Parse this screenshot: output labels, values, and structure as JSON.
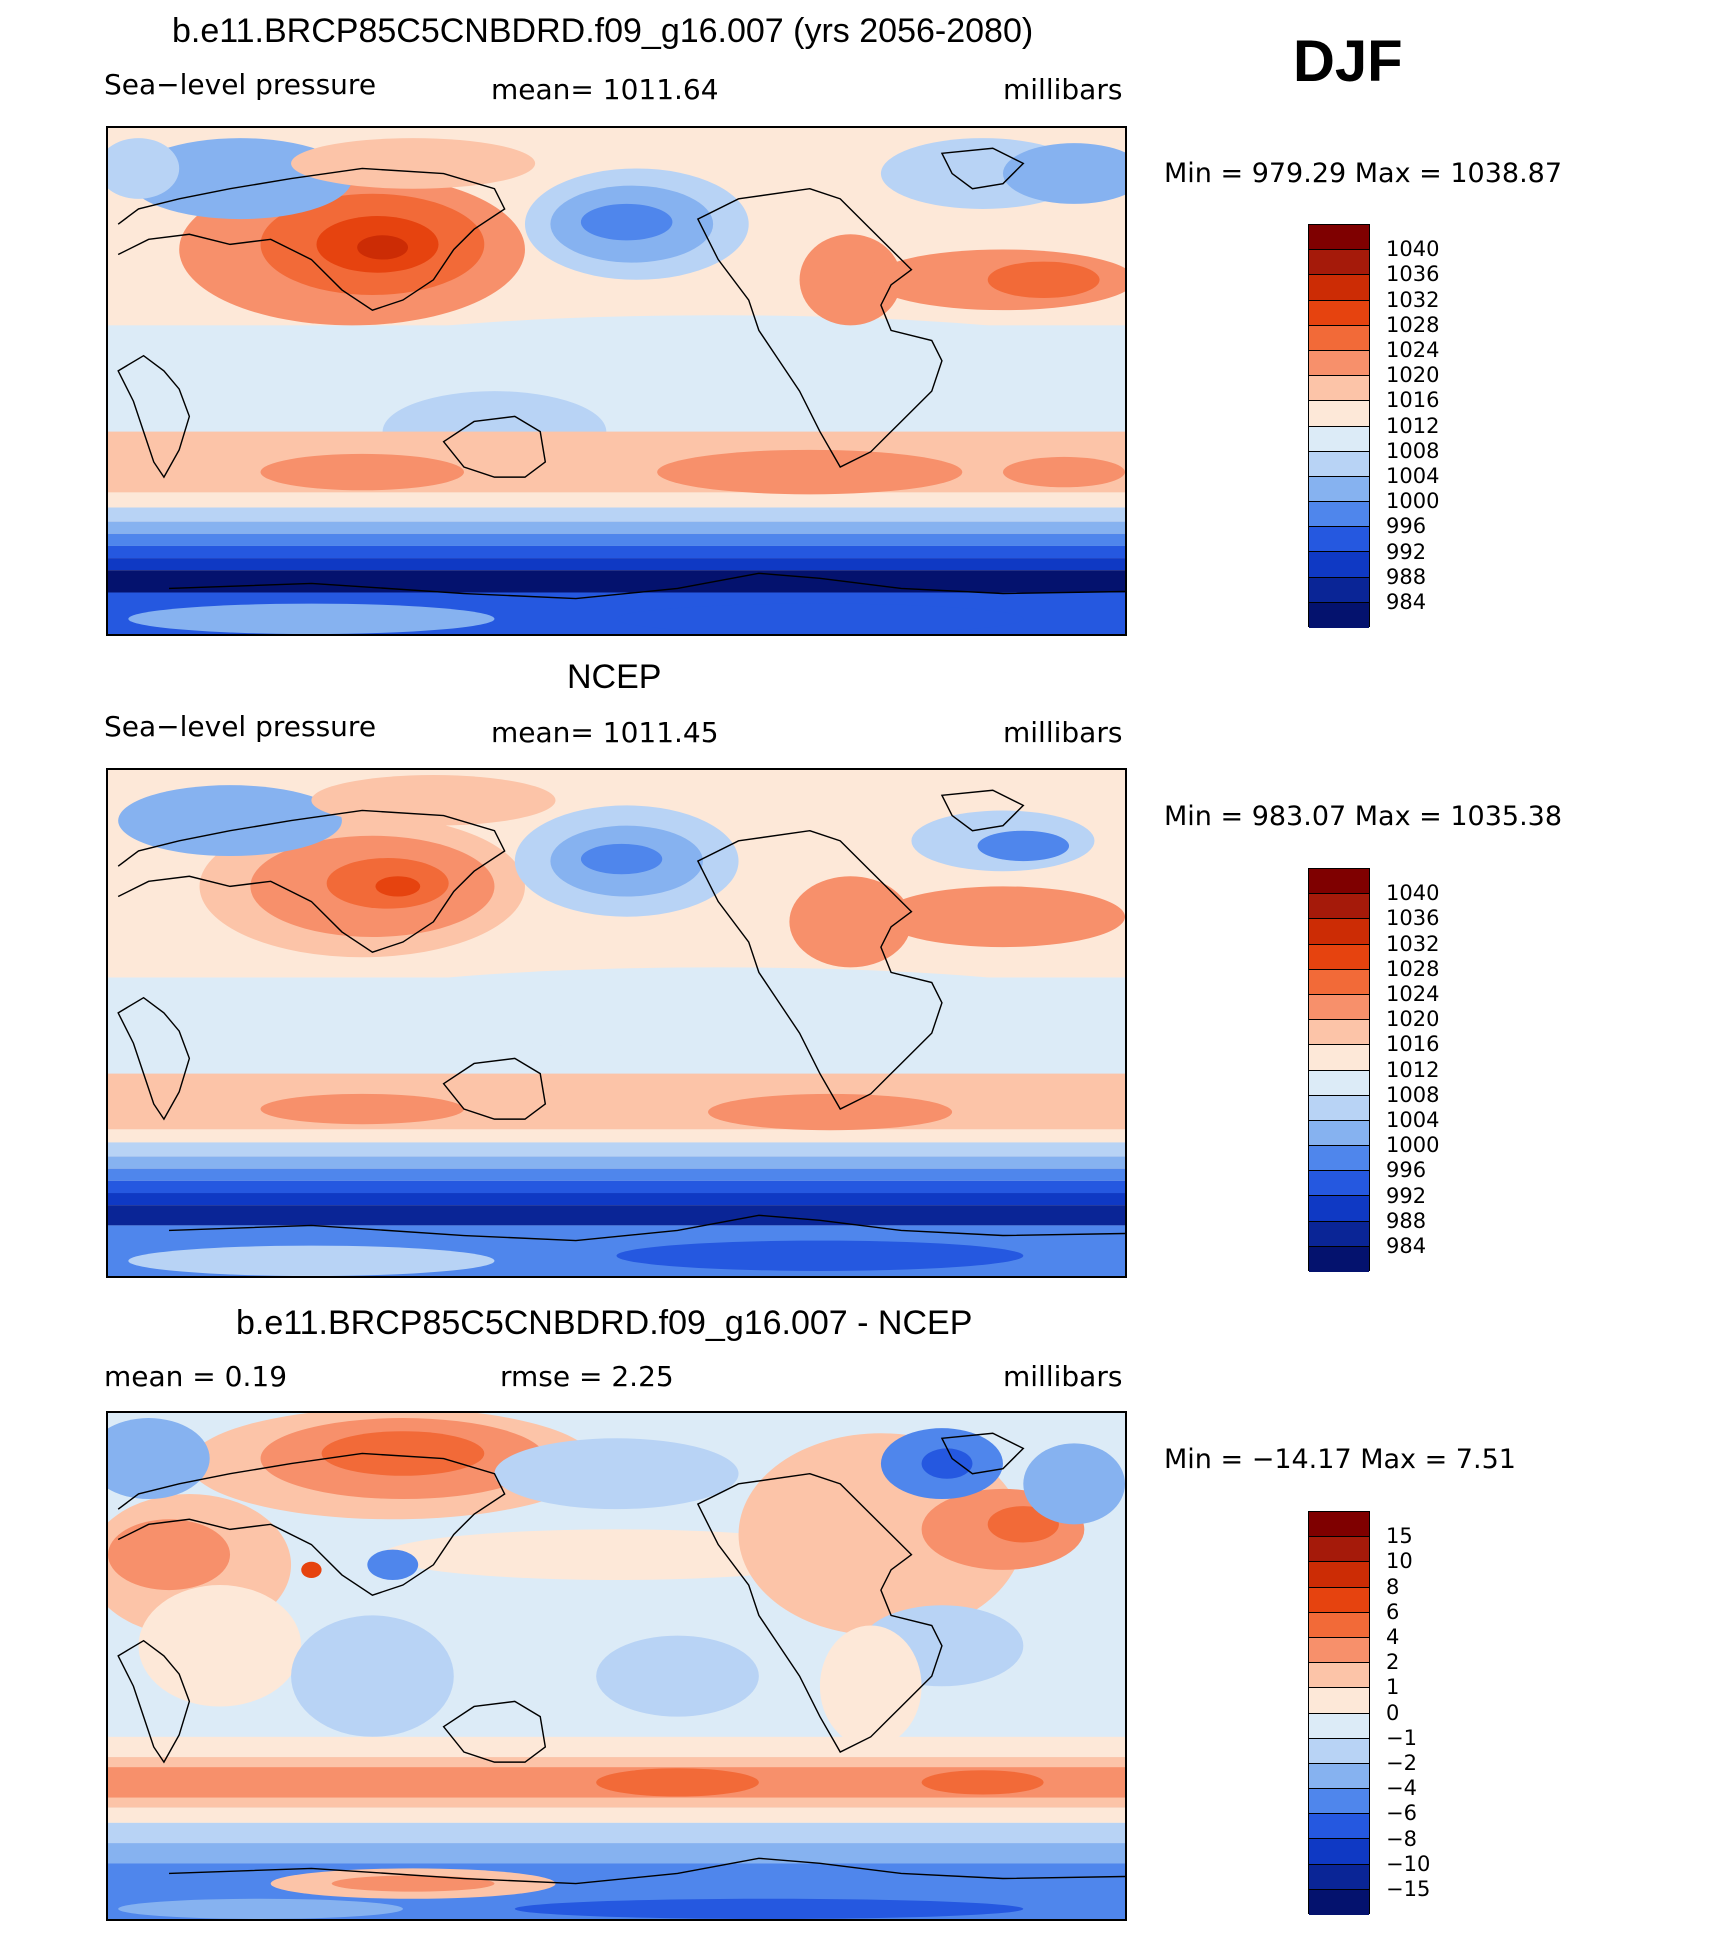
{
  "season": "DJF",
  "panels": [
    {
      "id": "model",
      "title": "b.e11.BRCP85C5CNBDRD.f09_g16.007 (yrs 2056-2080)",
      "left_label": "Sea−level pressure",
      "center_label": "mean=  1011.64",
      "right_label": "millibars",
      "minmax": "Min  =  979.29  Max  =  1038.87",
      "colorbar": {
        "labels": [
          "1040",
          "1036",
          "1032",
          "1028",
          "1024",
          "1020",
          "1016",
          "1012",
          "1008",
          "1004",
          "1000",
          "996",
          "992",
          "988",
          "984"
        ],
        "colors": [
          "#7f0000",
          "#a51a0a",
          "#cc2c05",
          "#e6430f",
          "#f26a38",
          "#f7906b",
          "#fcc4a8",
          "#fde8d8",
          "#dcebf7",
          "#b8d3f5",
          "#86b2f0",
          "#4f86ec",
          "#2558e0",
          "#0f39c4",
          "#0a2596",
          "#04126e"
        ]
      }
    },
    {
      "id": "obs",
      "title": "NCEP",
      "left_label": "Sea−level pressure",
      "center_label": "mean=  1011.45",
      "right_label": "millibars",
      "minmax": "Min  =  983.07  Max  =  1035.38",
      "colorbar": {
        "labels": [
          "1040",
          "1036",
          "1032",
          "1028",
          "1024",
          "1020",
          "1016",
          "1012",
          "1008",
          "1004",
          "1000",
          "996",
          "992",
          "988",
          "984"
        ],
        "colors": [
          "#7f0000",
          "#a51a0a",
          "#cc2c05",
          "#e6430f",
          "#f26a38",
          "#f7906b",
          "#fcc4a8",
          "#fde8d8",
          "#dcebf7",
          "#b8d3f5",
          "#86b2f0",
          "#4f86ec",
          "#2558e0",
          "#0f39c4",
          "#0a2596",
          "#04126e"
        ]
      }
    },
    {
      "id": "diff",
      "title": "b.e11.BRCP85C5CNBDRD.f09_g16.007 - NCEP",
      "left_label": "mean  =     0.19",
      "center_label": "rmse  =     2.25",
      "right_label": "millibars",
      "minmax": "Min  =  −14.17  Max  =      7.51",
      "colorbar": {
        "labels": [
          "15",
          "10",
          "8",
          "6",
          "4",
          "2",
          "1",
          "0",
          "−1",
          "−2",
          "−4",
          "−6",
          "−8",
          "−10",
          "−15"
        ],
        "colors": [
          "#7f0000",
          "#a51a0a",
          "#cc2c05",
          "#e6430f",
          "#f26a38",
          "#f7906b",
          "#fcc4a8",
          "#fde8d8",
          "#dcebf7",
          "#b8d3f5",
          "#86b2f0",
          "#4f86ec",
          "#2558e0",
          "#0f39c4",
          "#0a2596",
          "#04126e"
        ]
      }
    }
  ]
}
